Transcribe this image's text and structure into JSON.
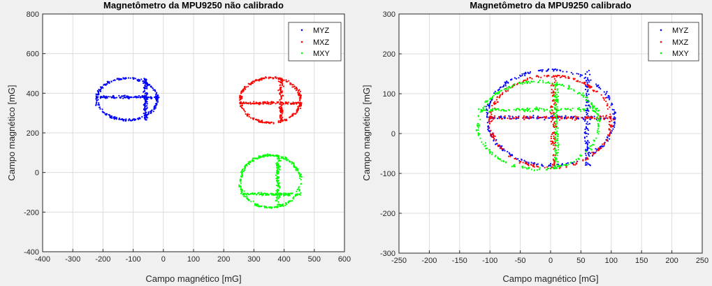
{
  "chart_data": [
    {
      "type": "scatter",
      "title": "Magnetômetro da MPU9250 não calibrado",
      "xlabel": "Campo magnético [mG]",
      "ylabel": "Campo magnético [mG]",
      "xlim": [
        -400,
        600
      ],
      "ylim": [
        -400,
        800
      ],
      "xticks": [
        -400,
        -300,
        -200,
        -100,
        0,
        100,
        200,
        300,
        400,
        500,
        600
      ],
      "yticks": [
        -400,
        -200,
        0,
        200,
        400,
        600,
        800
      ],
      "grid": true,
      "legend_position": "top-right",
      "series": [
        {
          "name": "MYZ",
          "color": "#0000ff",
          "center": [
            -120,
            370
          ],
          "radii": [
            200,
            210
          ],
          "cross": [
            -60,
            380
          ]
        },
        {
          "name": "MXZ",
          "color": "#ff0000",
          "center": [
            355,
            365
          ],
          "radii": [
            200,
            225
          ],
          "cross": [
            390,
            350
          ]
        },
        {
          "name": "MXY",
          "color": "#00ff00",
          "center": [
            355,
            -45
          ],
          "radii": [
            200,
            265
          ],
          "cross": [
            380,
            -110
          ]
        }
      ]
    },
    {
      "type": "scatter",
      "title": "Magnetômetro da MPU9250 calibrado",
      "xlabel": "Campo magnético [mG]",
      "ylabel": "Campo magnético [mG]",
      "xlim": [
        -250,
        250
      ],
      "ylim": [
        -300,
        300
      ],
      "xticks": [
        -250,
        -200,
        -150,
        -100,
        -50,
        0,
        50,
        100,
        150,
        200,
        250
      ],
      "yticks": [
        -300,
        -200,
        -100,
        0,
        100,
        200,
        300
      ],
      "grid": true,
      "legend_position": "top-right",
      "series": [
        {
          "name": "MYZ",
          "color": "#0000ff",
          "center": [
            0,
            40
          ],
          "radii": [
            210,
            240
          ],
          "cross": [
            60,
            40
          ]
        },
        {
          "name": "MXZ",
          "color": "#ff0000",
          "center": [
            0,
            30
          ],
          "radii": [
            200,
            230
          ],
          "cross": [
            5,
            40
          ]
        },
        {
          "name": "MXY",
          "color": "#00ff00",
          "center": [
            -20,
            20
          ],
          "radii": [
            200,
            220
          ],
          "cross": [
            10,
            60
          ]
        }
      ]
    }
  ]
}
